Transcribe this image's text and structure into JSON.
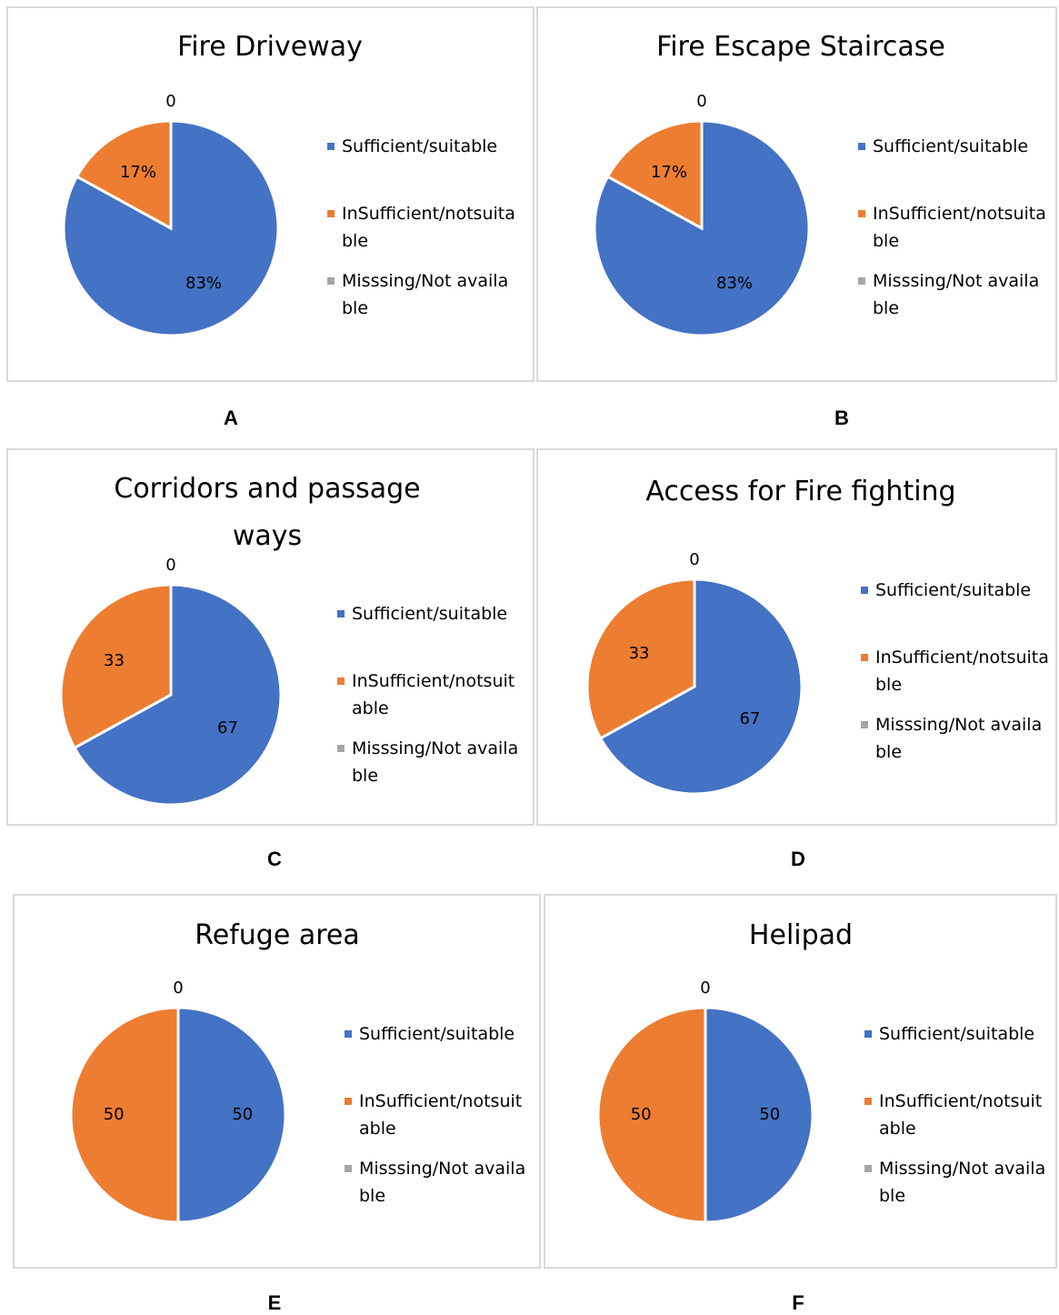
{
  "chart_data": [
    {
      "type": "pie",
      "title": "Fire Driveway",
      "panel": "A",
      "categories": [
        "Sufficient/suitable",
        "InSufficient/notsuitable",
        "Misssing/Not available"
      ],
      "values": [
        83,
        17,
        0
      ],
      "value_labels": [
        "83%",
        "17%",
        "0"
      ],
      "colors": [
        "#4472c4",
        "#ed7d31",
        "#a5a5a5"
      ],
      "legend": "right"
    },
    {
      "type": "pie",
      "title": "Fire Escape Staircase",
      "panel": "B",
      "categories": [
        "Sufficient/suitable",
        "InSufficient/notsuitable",
        "Misssing/Not available"
      ],
      "values": [
        83,
        17,
        0
      ],
      "value_labels": [
        "83%",
        "17%",
        "0"
      ],
      "colors": [
        "#4472c4",
        "#ed7d31",
        "#a5a5a5"
      ],
      "legend": "right"
    },
    {
      "type": "pie",
      "title": "Corridors and passage ways",
      "panel": "C",
      "categories": [
        "Sufficient/suitable",
        "InSufficient/notsuitable",
        "Misssing/Not available"
      ],
      "values": [
        67,
        33,
        0
      ],
      "colors": [
        "#4472c4",
        "#ed7d31",
        "#a5a5a5"
      ],
      "legend": "right"
    },
    {
      "type": "pie",
      "title": "Access for Fire fighting",
      "panel": "D",
      "categories": [
        "Sufficient/suitable",
        "InSufficient/notsuitable",
        "Misssing/Not available"
      ],
      "values": [
        67,
        33,
        0
      ],
      "colors": [
        "#4472c4",
        "#ed7d31",
        "#a5a5a5"
      ],
      "legend": "right"
    },
    {
      "type": "pie",
      "title": "Refuge area",
      "panel": "E",
      "categories": [
        "Sufficient/suitable",
        "InSufficient/notsuitable",
        "Misssing/Not available"
      ],
      "values": [
        50,
        50,
        0
      ],
      "colors": [
        "#4472c4",
        "#ed7d31",
        "#a5a5a5"
      ],
      "legend": "right"
    },
    {
      "type": "pie",
      "title": "Helipad",
      "panel": "F",
      "categories": [
        "Sufficient/suitable",
        "InSufficient/notsuitable",
        "Misssing/Not available"
      ],
      "values": [
        50,
        50,
        0
      ],
      "colors": [
        "#4472c4",
        "#ed7d31",
        "#a5a5a5"
      ],
      "legend": "right"
    }
  ]
}
